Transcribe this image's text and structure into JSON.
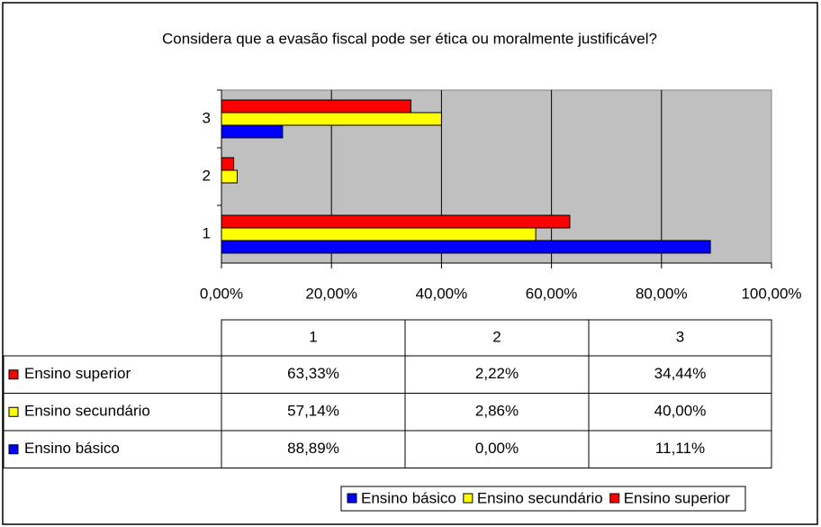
{
  "chart_data": {
    "type": "bar",
    "orientation": "horizontal",
    "title": "Considera que a evasão fiscal pode ser ética ou moralmente justificável?",
    "categories": [
      "1",
      "2",
      "3"
    ],
    "series": [
      {
        "name": "Ensino básico",
        "color": "#0000ff",
        "values": [
          88.89,
          0,
          11.11
        ],
        "value_labels": [
          "88,89%",
          "0,00%",
          "11,11%"
        ]
      },
      {
        "name": "Ensino secundário",
        "color": "#ffff00",
        "values": [
          57.14,
          2.86,
          40.0
        ],
        "value_labels": [
          "57,14%",
          "2,86%",
          "40,00%"
        ]
      },
      {
        "name": "Ensino superior",
        "color": "#ff0000",
        "values": [
          63.33,
          2.22,
          34.44
        ],
        "value_labels": [
          "63,33%",
          "2,22%",
          "34,44%"
        ]
      }
    ],
    "xlim": [
      0,
      100
    ],
    "xticks": [
      {
        "value": 0,
        "label": "0,00%"
      },
      {
        "value": 20,
        "label": "20,00%"
      },
      {
        "value": 40,
        "label": "40,00%"
      },
      {
        "value": 60,
        "label": "60,00%"
      },
      {
        "value": 80,
        "label": "80,00%"
      },
      {
        "value": 100,
        "label": "100,00%"
      }
    ],
    "grid": true,
    "legend": "bottom",
    "data_table": true
  }
}
